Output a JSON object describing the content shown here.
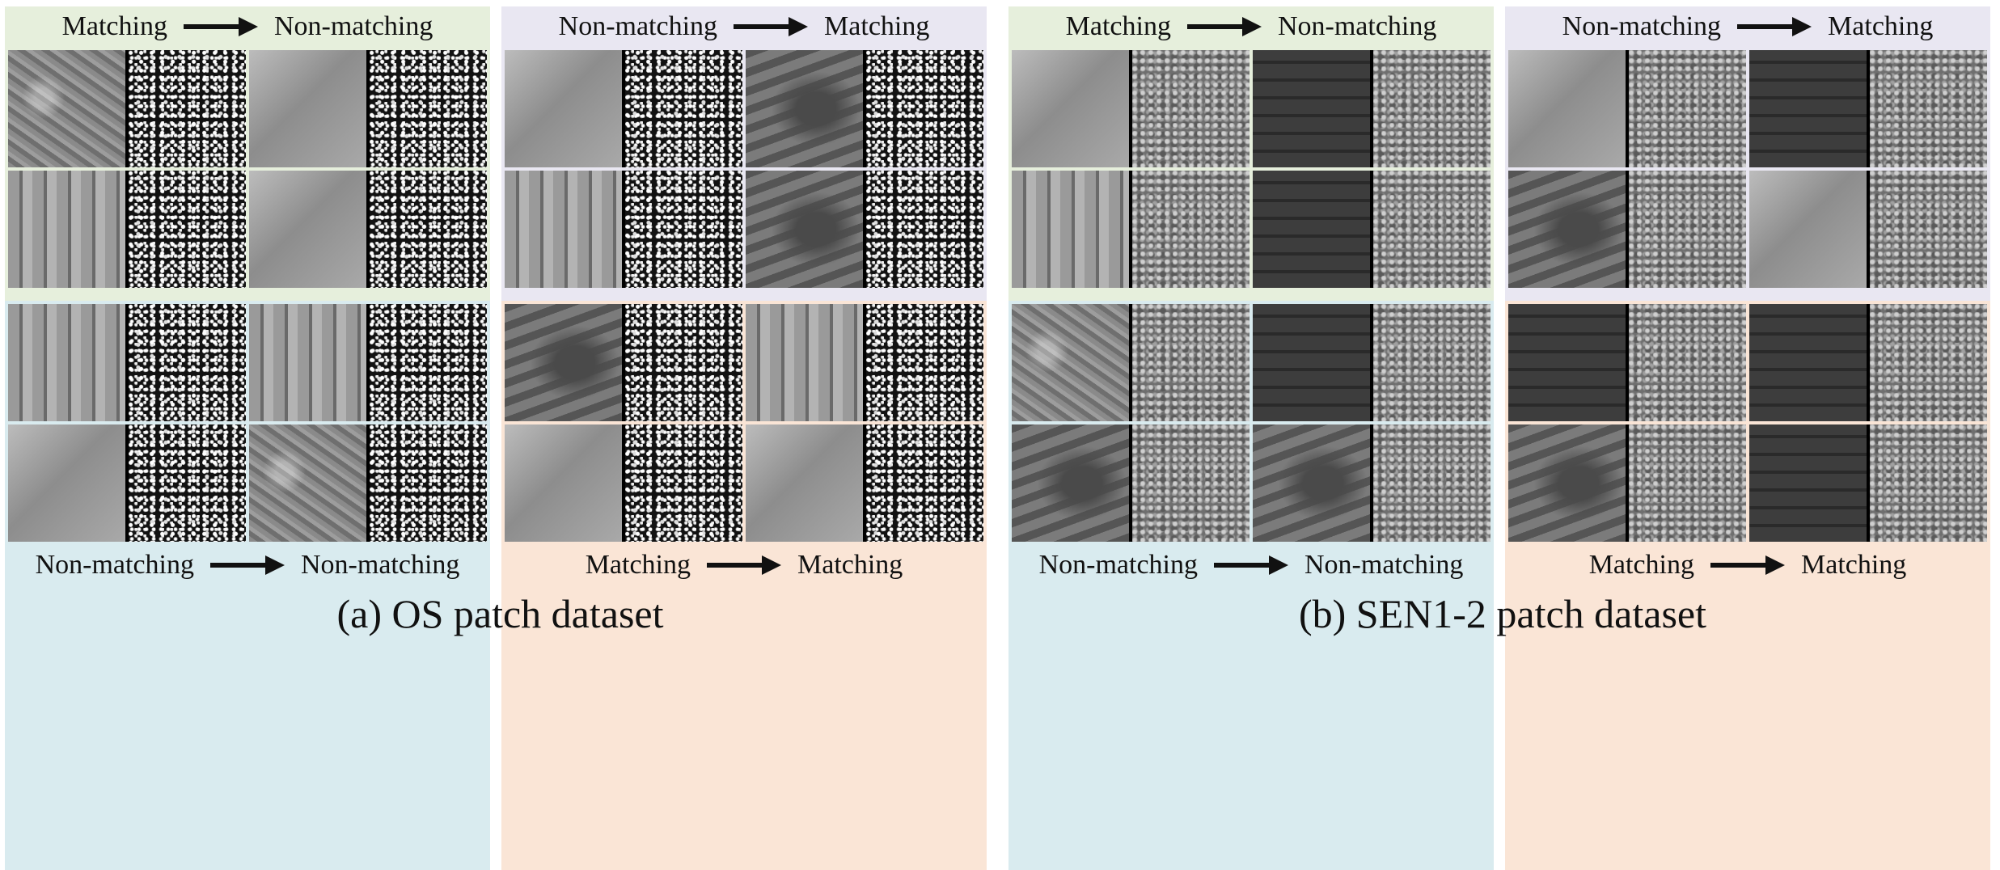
{
  "datasets": [
    {
      "caption": "(a) OS patch dataset",
      "quadrants": [
        {
          "from": "Matching",
          "to": "Non-matching"
        },
        {
          "from": "Non-matching",
          "to": "Matching"
        },
        {
          "from": "Non-matching",
          "to": "Non-matching"
        },
        {
          "from": "Matching",
          "to": "Matching"
        }
      ]
    },
    {
      "caption": "(b) SEN1-2 patch dataset",
      "quadrants": [
        {
          "from": "Matching",
          "to": "Non-matching"
        },
        {
          "from": "Non-matching",
          "to": "Matching"
        },
        {
          "from": "Non-matching",
          "to": "Non-matching"
        },
        {
          "from": "Matching",
          "to": "Matching"
        }
      ]
    }
  ],
  "colors": {
    "green": "#e6efdc",
    "purple": "#e9e7f2",
    "blue": "#d9ebef",
    "peach": "#fae5d6",
    "arrow": "#111111"
  }
}
